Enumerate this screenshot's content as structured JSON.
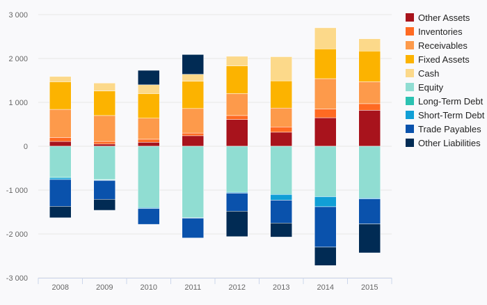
{
  "chart_data": {
    "type": "bar",
    "stacked": true,
    "categories": [
      "2008",
      "2009",
      "2010",
      "2011",
      "2012",
      "2013",
      "2014",
      "2015"
    ],
    "ylim": [
      -3000,
      3000
    ],
    "yticks": [
      -3000,
      -2000,
      -1000,
      0,
      1000,
      2000,
      3000
    ],
    "ytick_labels": [
      "-3 000",
      "-2 000",
      "-1 000",
      "0",
      "1 000",
      "2 000",
      "3 000"
    ],
    "grid": true,
    "legend_position": "right",
    "series": [
      {
        "name": "Other Assets",
        "color": "#a8131c",
        "values": [
          110,
          50,
          90,
          240,
          610,
          320,
          650,
          820
        ]
      },
      {
        "name": "Inventories",
        "color": "#ff6a22",
        "values": [
          90,
          60,
          70,
          60,
          90,
          120,
          200,
          150
        ]
      },
      {
        "name": "Receivables",
        "color": "#fd9a4b",
        "values": [
          640,
          590,
          480,
          560,
          500,
          430,
          690,
          500
        ]
      },
      {
        "name": "Fixed Assets",
        "color": "#fcb300",
        "values": [
          630,
          560,
          560,
          620,
          630,
          620,
          680,
          700
        ]
      },
      {
        "name": "Cash",
        "color": "#fcd98a",
        "values": [
          120,
          180,
          200,
          160,
          220,
          550,
          480,
          280
        ]
      },
      {
        "name": "Equity",
        "color": "#90ddd2",
        "values": [
          -700,
          -760,
          -1400,
          -1630,
          -1050,
          -1100,
          -1150,
          -1180
        ]
      },
      {
        "name": "Long-Term Debt",
        "color": "#2cc2b2",
        "values": [
          -20,
          -10,
          0,
          0,
          0,
          0,
          0,
          0
        ]
      },
      {
        "name": "Short-Term Debt",
        "color": "#119fd6",
        "values": [
          -40,
          -10,
          -20,
          -10,
          -20,
          -130,
          -230,
          -20
        ]
      },
      {
        "name": "Trade Payables",
        "color": "#0a52ac",
        "values": [
          -610,
          -430,
          -360,
          -450,
          -410,
          -520,
          -920,
          -570
        ]
      },
      {
        "name": "Other Liabilities",
        "color": "#012b54",
        "values": [
          -260,
          -250,
          330,
          450,
          -580,
          -320,
          -420,
          -660
        ]
      }
    ]
  }
}
